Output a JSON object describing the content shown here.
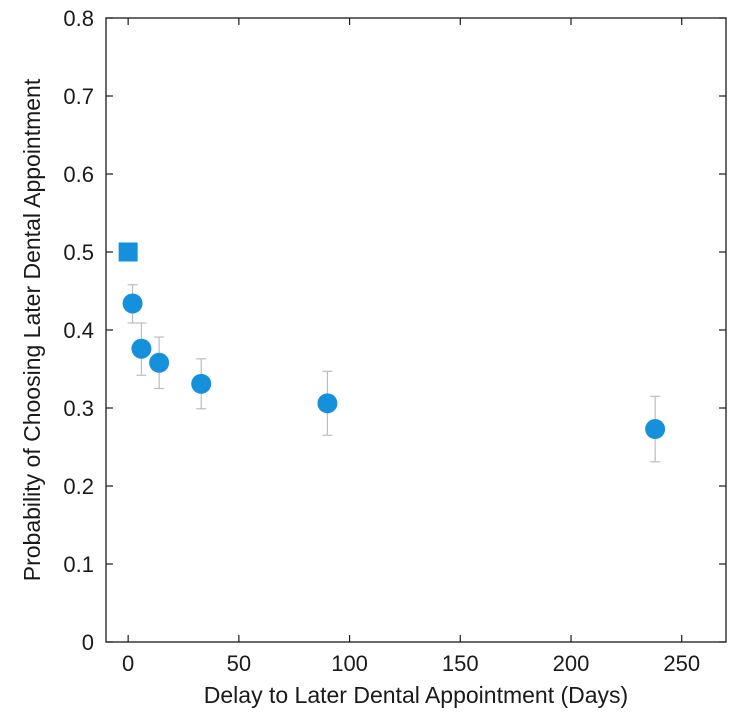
{
  "chart_data": {
    "type": "scatter",
    "title": "",
    "xlabel": "Delay to Later Dental Appointment (Days)",
    "ylabel": "Probability of Choosing Later Dental Appointment",
    "xlim": [
      -10,
      270
    ],
    "ylim": [
      0,
      0.8
    ],
    "xticks": [
      0,
      50,
      100,
      150,
      200,
      250
    ],
    "yticks": [
      0,
      0.1,
      0.2,
      0.3,
      0.4,
      0.5,
      0.6,
      0.7,
      0.8
    ],
    "xtick_labels": [
      "0",
      "50",
      "100",
      "150",
      "200",
      "250"
    ],
    "ytick_labels": [
      "0",
      "0.1",
      "0.2",
      "0.3",
      "0.4",
      "0.5",
      "0.6",
      "0.7",
      "0.8"
    ],
    "grid": false,
    "marker_color": "#1591DB",
    "errorbar_color": "#bdbdbd",
    "reference_point": {
      "marker": "square",
      "x": 0,
      "y": 0.5
    },
    "points": [
      {
        "x": 2,
        "y": 0.434,
        "err_low": 0.409,
        "err_high": 0.458
      },
      {
        "x": 6,
        "y": 0.376,
        "err_low": 0.342,
        "err_high": 0.409
      },
      {
        "x": 14,
        "y": 0.358,
        "err_low": 0.325,
        "err_high": 0.391
      },
      {
        "x": 33,
        "y": 0.331,
        "err_low": 0.299,
        "err_high": 0.363
      },
      {
        "x": 90,
        "y": 0.306,
        "err_low": 0.265,
        "err_high": 0.347
      },
      {
        "x": 238,
        "y": 0.273,
        "err_low": 0.231,
        "err_high": 0.315
      }
    ]
  }
}
